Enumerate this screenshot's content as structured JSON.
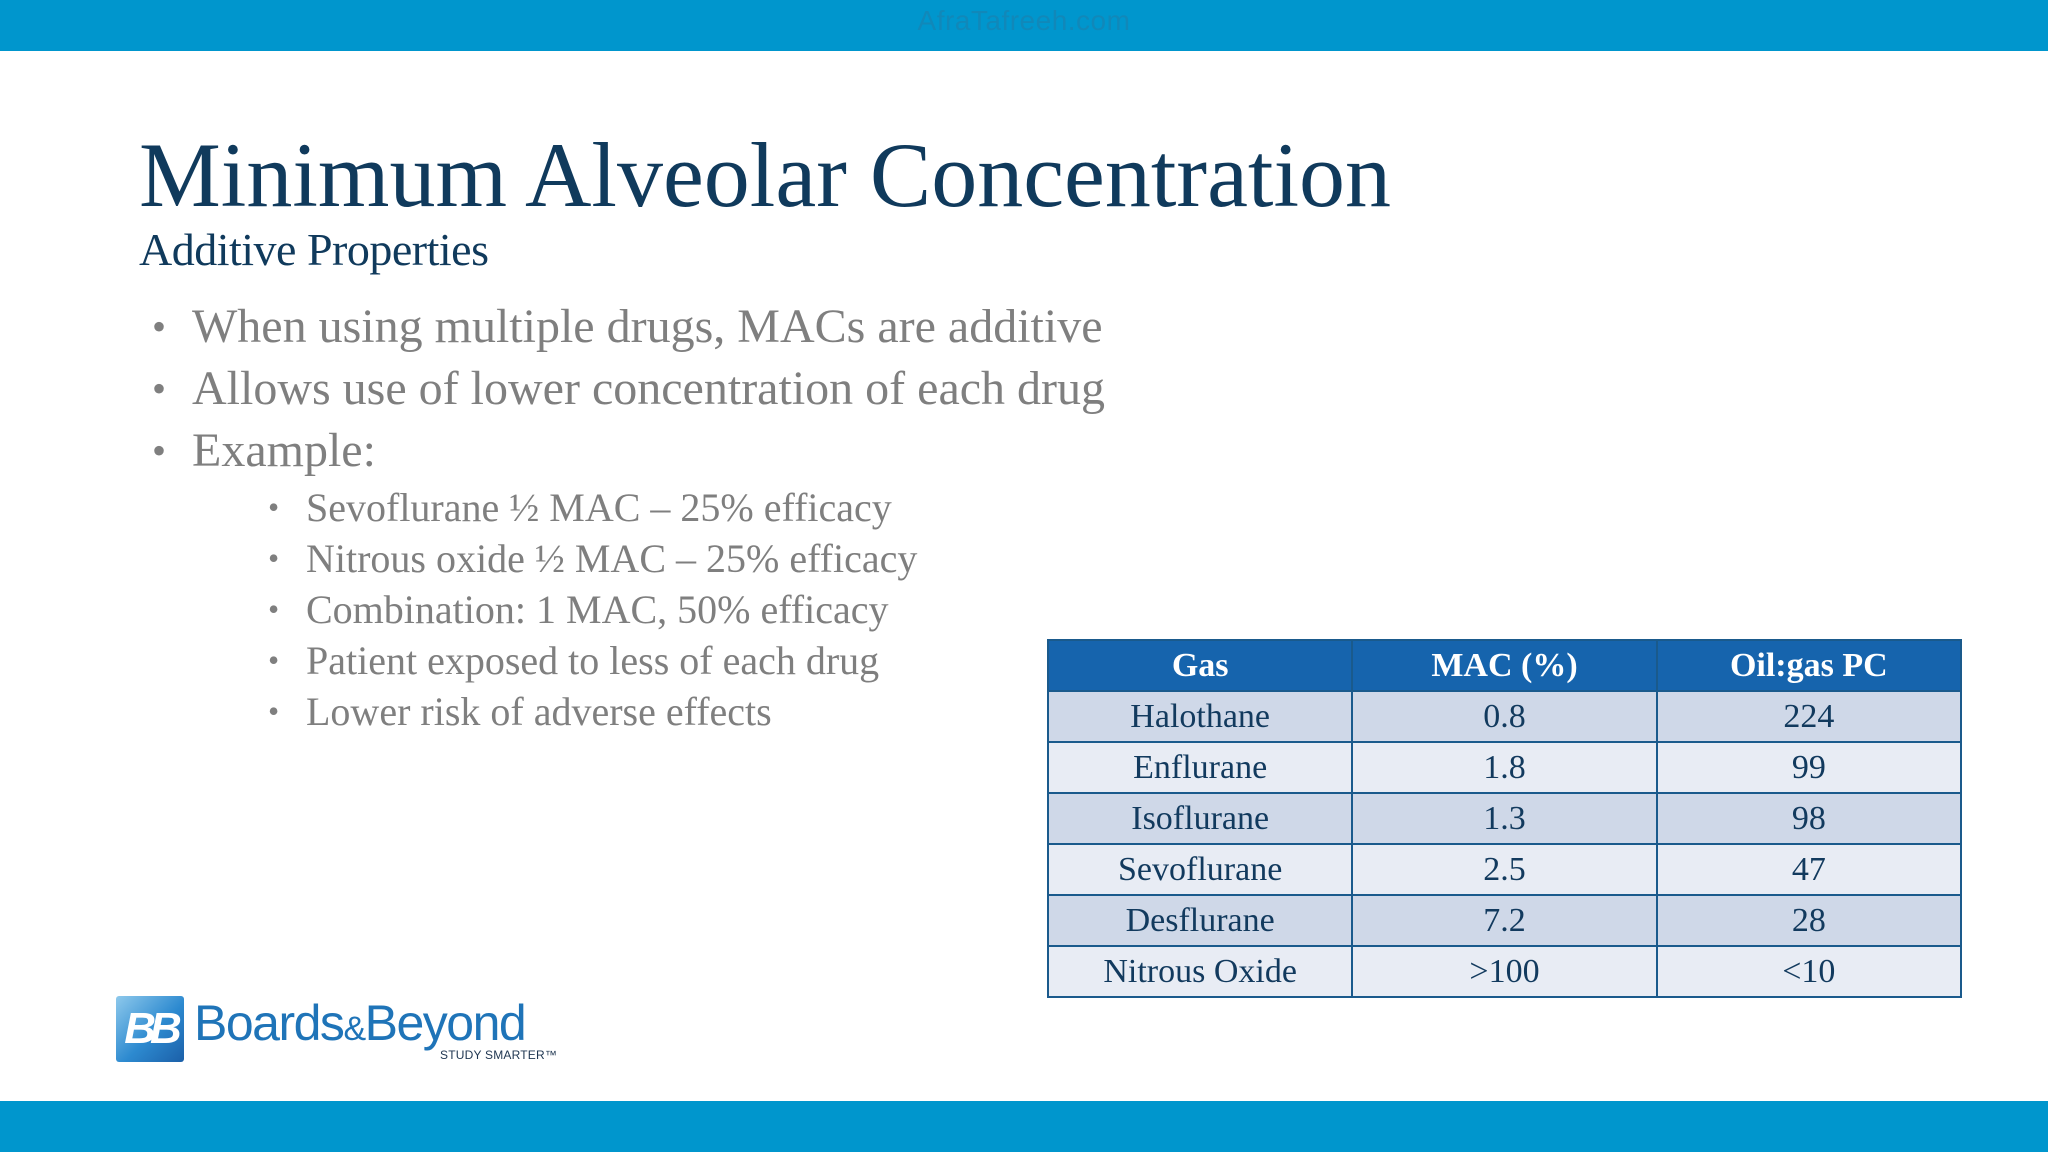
{
  "watermark": "AfraTafreeh.com",
  "title": "Minimum Alveolar Concentration",
  "subtitle": "Additive Properties",
  "bullets": [
    "When using multiple drugs, MACs are additive",
    "Allows use of lower concentration of each drug",
    "Example:"
  ],
  "sub_bullets": [
    "Sevoflurane ½ MAC – 25% efficacy",
    "Nitrous oxide ½ MAC – 25% efficacy",
    "Combination: 1 MAC, 50% efficacy",
    "Patient exposed to less of each drug",
    "Lower risk of adverse effects"
  ],
  "table": {
    "headers": [
      "Gas",
      "MAC (%)",
      "Oil:gas PC"
    ],
    "rows": [
      [
        "Halothane",
        "0.8",
        "224"
      ],
      [
        "Enflurane",
        "1.8",
        "99"
      ],
      [
        "Isoflurane",
        "1.3",
        "98"
      ],
      [
        "Sevoflurane",
        "2.5",
        "47"
      ],
      [
        "Desflurane",
        "7.2",
        "28"
      ],
      [
        "Nitrous Oxide",
        ">100",
        "<10"
      ]
    ]
  },
  "logo": {
    "mark": "BB",
    "name_part1": "Boards",
    "name_amp": "&",
    "name_part2": "Beyond",
    "tagline": "STUDY SMARTER™"
  },
  "colors": {
    "bar": "#0096cd",
    "title": "#103a5c",
    "body_text": "#7f7f7f",
    "table_header": "#1664ad",
    "table_row_odd": "#cfd8e8",
    "table_row_even": "#e8ecf4"
  }
}
